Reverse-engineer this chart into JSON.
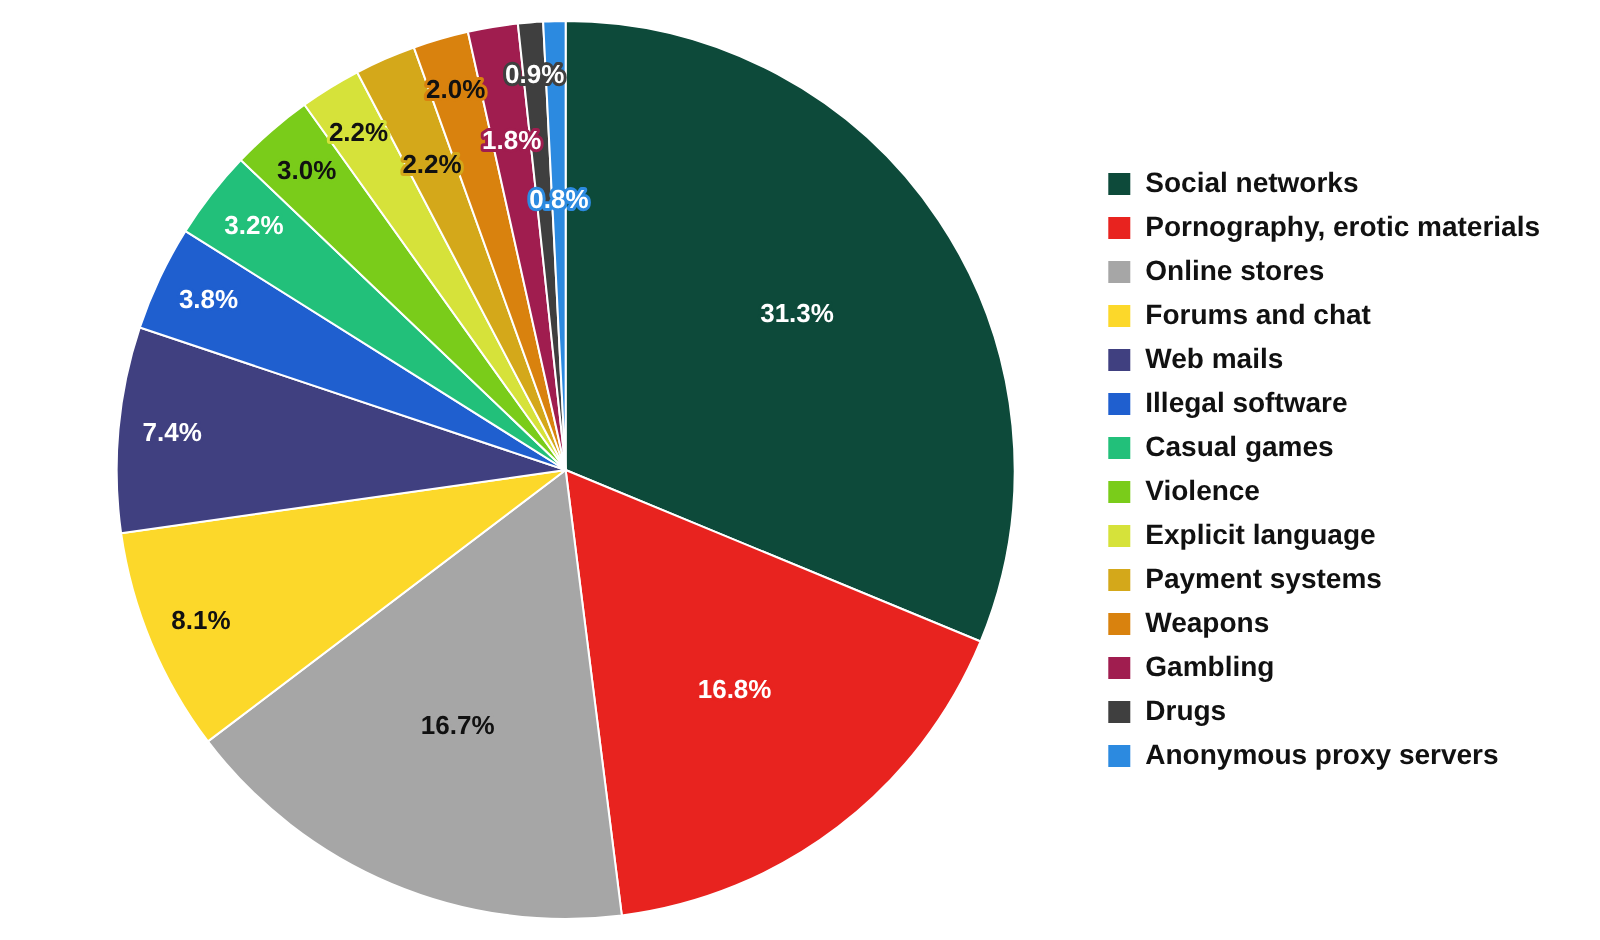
{
  "chart_data": {
    "type": "pie",
    "categories": [
      "Social networks",
      "Pornography, erotic materials",
      "Online stores",
      "Forums and chat",
      "Web mails",
      "Illegal software",
      "Casual games",
      "Violence",
      "Explicit language",
      "Payment systems",
      "Weapons",
      "Gambling",
      "Drugs",
      "Anonymous proxy servers"
    ],
    "values": [
      31.3,
      16.8,
      16.7,
      8.1,
      7.4,
      3.8,
      3.2,
      3.0,
      2.2,
      2.2,
      2.0,
      1.8,
      0.9,
      0.8
    ],
    "colors": [
      "#0d4a3a",
      "#e8231f",
      "#a6a6a6",
      "#fcd82a",
      "#404080",
      "#1f5fcf",
      "#22c07a",
      "#7acc1a",
      "#d6e23a",
      "#d4a81a",
      "#d9820e",
      "#a01d4f",
      "#3f3f3f",
      "#2c8ae0"
    ],
    "value_labels": [
      "31.3%",
      "16.8%",
      "16.7%",
      "8.1%",
      "7.4%",
      "3.8%",
      "3.2%",
      "3.0%",
      "2.2%",
      "2.2%",
      "2.0%",
      "1.8%",
      "0.9%",
      "0.8%"
    ],
    "legend": "right"
  }
}
